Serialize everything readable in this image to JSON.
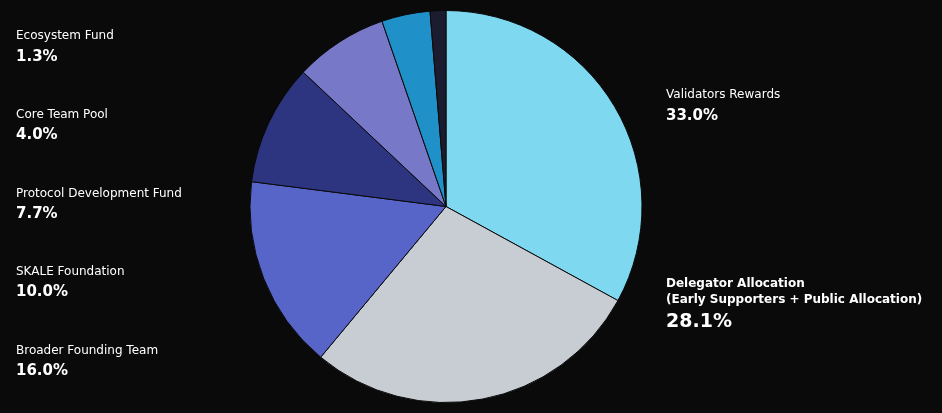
{
  "chart_data": {
    "type": "pie",
    "categories": [
      "Validators Rewards",
      "Delegator Allocation\n(Early Supporters + Public Allocation)",
      "Broader Founding Team",
      "SKALE Foundation",
      "Protocol Development Fund",
      "Core Team Pool",
      "Ecosystem Fund"
    ],
    "values": [
      33.0,
      28.1,
      16.0,
      10.0,
      7.7,
      4.0,
      1.3
    ],
    "value_labels": [
      "33.0%",
      "28.1%",
      "16.0%",
      "10.0%",
      "7.7%",
      "4.0%",
      "1.3%"
    ],
    "colors": [
      "#7dd8f0",
      "#c8cdd4",
      "#5865c8",
      "#2d3580",
      "#7878c8",
      "#2090c8",
      "#1c1c30"
    ],
    "data_labels": true
  }
}
